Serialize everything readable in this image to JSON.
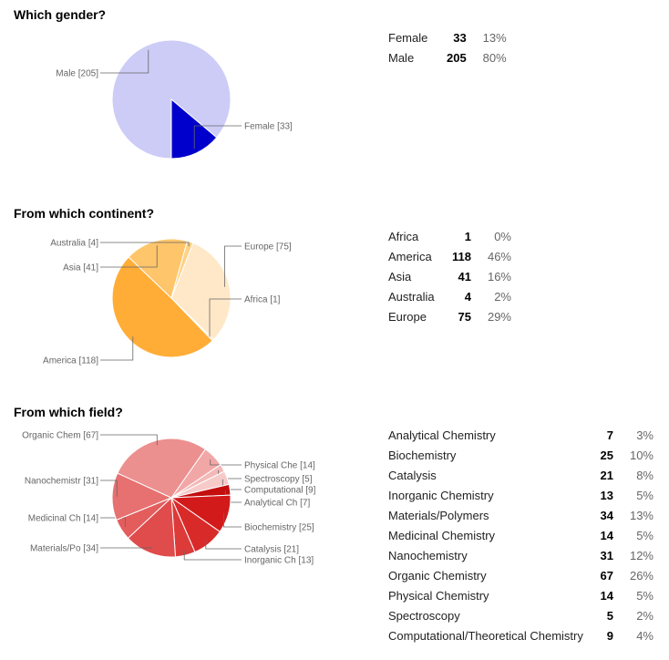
{
  "questions": [
    {
      "title": "Which gender?",
      "chart_data": {
        "type": "pie",
        "title": "Which gender?",
        "slices": [
          {
            "label": "Male",
            "value": 205,
            "color": "#ccccf7",
            "chart_label": "Male [205]"
          },
          {
            "label": "Female",
            "value": 33,
            "color": "#0000cc",
            "chart_label": "Female [33]"
          }
        ]
      },
      "rows": [
        {
          "label": "Female",
          "count": "33",
          "pct": "13%"
        },
        {
          "label": "Male",
          "count": "205",
          "pct": "80%"
        }
      ]
    },
    {
      "title": "From which continent?",
      "chart_data": {
        "type": "pie",
        "title": "From which continent?",
        "slices": [
          {
            "label": "Europe",
            "value": 75,
            "color": "#ffe8c8",
            "chart_label": "Europe [75]"
          },
          {
            "label": "Africa",
            "value": 1,
            "color": "#ffdca0",
            "chart_label": "Africa [1]"
          },
          {
            "label": "America",
            "value": 118,
            "color": "#ffad36",
            "chart_label": "America [118]"
          },
          {
            "label": "Asia",
            "value": 41,
            "color": "#ffc56b",
            "chart_label": "Asia [41]"
          },
          {
            "label": "Australia",
            "value": 4,
            "color": "#ffd285",
            "chart_label": "Australia [4]"
          }
        ]
      },
      "rows": [
        {
          "label": "Africa",
          "count": "1",
          "pct": "0%"
        },
        {
          "label": "America",
          "count": "118",
          "pct": "46%"
        },
        {
          "label": "Asia",
          "count": "41",
          "pct": "16%"
        },
        {
          "label": "Australia",
          "count": "4",
          "pct": "2%"
        },
        {
          "label": "Europe",
          "count": "75",
          "pct": "29%"
        }
      ]
    },
    {
      "title": "From which field?",
      "chart_data": {
        "type": "pie",
        "title": "From which field?",
        "slices": [
          {
            "label": "Physical Chemistry",
            "value": 14,
            "color": "#f2a7a7",
            "chart_label": "Physical Che [14]"
          },
          {
            "label": "Spectroscopy",
            "value": 5,
            "color": "#f4b8b8",
            "chart_label": "Spectroscopy [5]"
          },
          {
            "label": "Computational/Theoretical Chemistry",
            "value": 9,
            "color": "#f7caca",
            "chart_label": "Computational [9]"
          },
          {
            "label": "Analytical Chemistry",
            "value": 7,
            "color": "#c40d0d",
            "chart_label": "Analytical Ch [7]"
          },
          {
            "label": "Biochemistry",
            "value": 25,
            "color": "#d31a1a",
            "chart_label": "Biochemistry [25]"
          },
          {
            "label": "Catalysis",
            "value": 21,
            "color": "#d92a2a",
            "chart_label": "Catalysis [21]"
          },
          {
            "label": "Inorganic Chemistry",
            "value": 13,
            "color": "#dd3a3a",
            "chart_label": "Inorganic Ch [13]"
          },
          {
            "label": "Materials/Polymers",
            "value": 34,
            "color": "#e04b4b",
            "chart_label": "Materials/Po [34]"
          },
          {
            "label": "Medicinal Chemistry",
            "value": 14,
            "color": "#e35d5d",
            "chart_label": "Medicinal Ch [14]"
          },
          {
            "label": "Nanochemistry",
            "value": 31,
            "color": "#e77070",
            "chart_label": "Nanochemistr [31]"
          },
          {
            "label": "Organic Chemistry",
            "value": 67,
            "color": "#ec8f8f",
            "chart_label": "Organic Chem [67]"
          }
        ]
      },
      "rows": [
        {
          "label": "Analytical Chemistry",
          "count": "7",
          "pct": "3%"
        },
        {
          "label": "Biochemistry",
          "count": "25",
          "pct": "10%"
        },
        {
          "label": "Catalysis",
          "count": "21",
          "pct": "8%"
        },
        {
          "label": "Inorganic Chemistry",
          "count": "13",
          "pct": "5%"
        },
        {
          "label": "Materials/Polymers",
          "count": "34",
          "pct": "13%"
        },
        {
          "label": "Medicinal Chemistry",
          "count": "14",
          "pct": "5%"
        },
        {
          "label": "Nanochemistry",
          "count": "31",
          "pct": "12%"
        },
        {
          "label": "Organic Chemistry",
          "count": "67",
          "pct": "26%"
        },
        {
          "label": "Physical Chemistry",
          "count": "14",
          "pct": "5%"
        },
        {
          "label": "Spectroscopy",
          "count": "5",
          "pct": "2%"
        },
        {
          "label": "Computational/Theoretical Chemistry",
          "count": "9",
          "pct": "4%"
        }
      ]
    }
  ]
}
